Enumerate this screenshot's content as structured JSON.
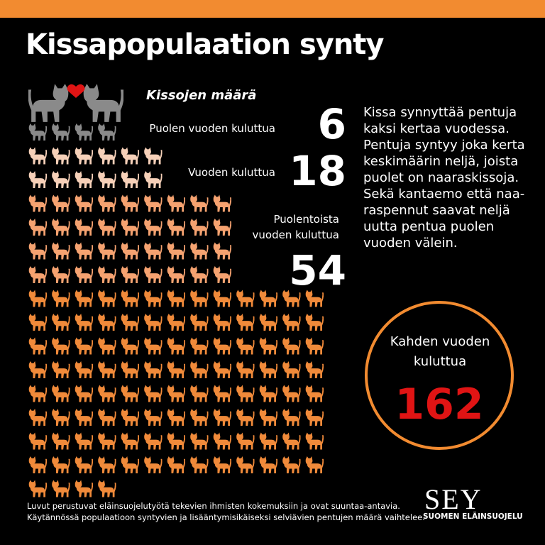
{
  "title": "Kissapopulaation synty",
  "legend_heading": "Kissojen määrä",
  "stages": [
    {
      "label": "Puolen vuoden kuluttua",
      "count": 6,
      "color": "#8a8a8a"
    },
    {
      "label": "Vuoden kuluttua",
      "count": 18,
      "color": "#f6d0b8"
    },
    {
      "label": "Puolentoista vuoden kuluttua",
      "count": 54,
      "color": "#f5a270"
    },
    {
      "label": "Kahden vuoden kuluttua",
      "count": 162,
      "color": "#f08a3a"
    }
  ],
  "description": "Kissa synnyttää pentuja kaksi kertaa vuodessa. Pentuja syntyy joka kerta keskimäärin neljä, joista puolet on naaraskissoja. Sekä kantaemo että naa-raspennut saavat neljä uutta pentua puolen vuoden välein.",
  "footer": {
    "note_lines": [
      "Luvut perustuvat eläinsuojelutyötä tekevien ihmisten kokemuksiin ja ovat suuntaa-antavia.",
      "Käytännössä populaatioon syntyvien ja lisääntymisikäiseksi selviävien pentujen määrä vaihtelee."
    ],
    "logo": "SEY",
    "logo_subtitle": "SUOMEN ELÄINSUOJELU"
  }
}
